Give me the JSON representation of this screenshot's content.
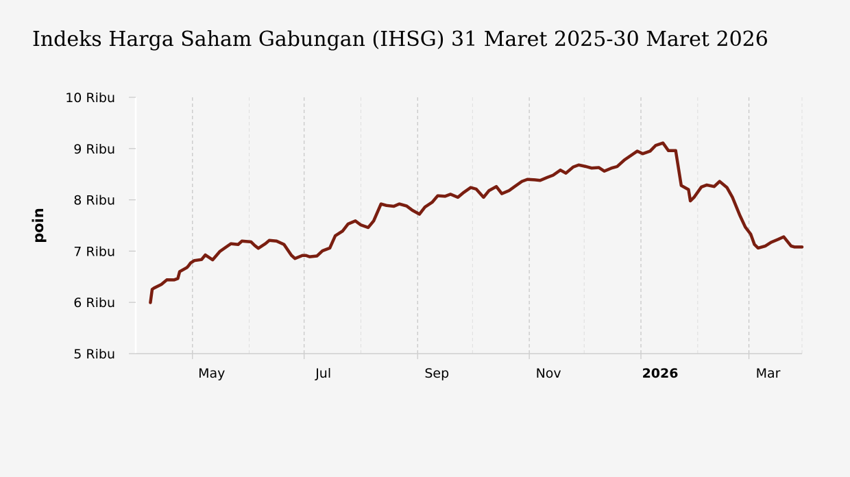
{
  "chart_data": {
    "type": "line",
    "title": "Indeks Harga Saham Gabungan (IHSG) 31 Maret 2025-30 Maret 2026",
    "xlabel": "",
    "ylabel": "poin",
    "ylim": [
      5000,
      10000
    ],
    "y_ticks": [
      {
        "value": 5000,
        "label": "5 Ribu"
      },
      {
        "value": 6000,
        "label": "6 Ribu"
      },
      {
        "value": 7000,
        "label": "7 Ribu"
      },
      {
        "value": 8000,
        "label": "8 Ribu"
      },
      {
        "value": 9000,
        "label": "9 Ribu"
      },
      {
        "value": 10000,
        "label": "10 Ribu"
      }
    ],
    "xlim": [
      "2025-03-31",
      "2026-03-30"
    ],
    "x_ticks": [
      {
        "date": "2025-05-01",
        "label": "May",
        "bold": false
      },
      {
        "date": "2025-07-01",
        "label": "Jul",
        "bold": false
      },
      {
        "date": "2025-09-01",
        "label": "Sep",
        "bold": false
      },
      {
        "date": "2025-11-01",
        "label": "Nov",
        "bold": false
      },
      {
        "date": "2026-01-01",
        "label": "2026",
        "bold": true
      },
      {
        "date": "2026-03-01",
        "label": "Mar",
        "bold": false
      }
    ],
    "minor_gridlines": [
      "2025-06-01",
      "2025-08-01",
      "2025-10-01",
      "2025-12-01",
      "2026-02-01"
    ],
    "grid": true,
    "line_color": "#7a1e10",
    "series": [
      {
        "name": "",
        "x": [
          "2025-04-08",
          "2025-04-09",
          "2025-04-10",
          "2025-04-14",
          "2025-04-17",
          "2025-04-21",
          "2025-04-23",
          "2025-04-24",
          "2025-04-28",
          "2025-04-29",
          "2025-04-30",
          "2025-05-02",
          "2025-05-06",
          "2025-05-08",
          "2025-05-12",
          "2025-05-14",
          "2025-05-16",
          "2025-05-20",
          "2025-05-22",
          "2025-05-26",
          "2025-05-28",
          "2025-06-02",
          "2025-06-04",
          "2025-06-06",
          "2025-06-10",
          "2025-06-12",
          "2025-06-16",
          "2025-06-20",
          "2025-06-24",
          "2025-06-26",
          "2025-06-30",
          "2025-07-02",
          "2025-07-04",
          "2025-07-08",
          "2025-07-11",
          "2025-07-15",
          "2025-07-18",
          "2025-07-22",
          "2025-07-25",
          "2025-07-29",
          "2025-08-01",
          "2025-08-05",
          "2025-08-08",
          "2025-08-12",
          "2025-08-15",
          "2025-08-19",
          "2025-08-22",
          "2025-08-26",
          "2025-08-29",
          "2025-09-02",
          "2025-09-05",
          "2025-09-09",
          "2025-09-12",
          "2025-09-16",
          "2025-09-19",
          "2025-09-23",
          "2025-09-26",
          "2025-09-30",
          "2025-10-03",
          "2025-10-07",
          "2025-10-10",
          "2025-10-14",
          "2025-10-17",
          "2025-10-21",
          "2025-10-24",
          "2025-10-28",
          "2025-10-31",
          "2025-11-04",
          "2025-11-07",
          "2025-11-11",
          "2025-11-14",
          "2025-11-18",
          "2025-11-21",
          "2025-11-25",
          "2025-11-28",
          "2025-12-02",
          "2025-12-05",
          "2025-12-09",
          "2025-12-12",
          "2025-12-16",
          "2025-12-19",
          "2025-12-23",
          "2025-12-30",
          "2026-01-02",
          "2026-01-06",
          "2026-01-09",
          "2026-01-13",
          "2026-01-16",
          "2026-01-20",
          "2026-01-23",
          "2026-01-27",
          "2026-01-28",
          "2026-01-30",
          "2026-02-03",
          "2026-02-06",
          "2026-02-10",
          "2026-02-13",
          "2026-02-17",
          "2026-02-20",
          "2026-02-24",
          "2026-02-27",
          "2026-03-02",
          "2026-03-04",
          "2026-03-06",
          "2026-03-10",
          "2026-03-13",
          "2026-03-17",
          "2026-03-20",
          "2026-03-24",
          "2026-03-26",
          "2026-03-30"
        ],
        "values": [
          5996,
          6254,
          6280,
          6350,
          6440,
          6438,
          6465,
          6600,
          6680,
          6720,
          6770,
          6815,
          6835,
          6925,
          6830,
          6912,
          6995,
          7095,
          7145,
          7130,
          7195,
          7180,
          7110,
          7055,
          7150,
          7210,
          7195,
          7130,
          6920,
          6855,
          6915,
          6915,
          6890,
          6905,
          7005,
          7060,
          7300,
          7390,
          7530,
          7590,
          7510,
          7460,
          7590,
          7920,
          7890,
          7875,
          7920,
          7880,
          7800,
          7720,
          7860,
          7955,
          8080,
          8070,
          8110,
          8050,
          8140,
          8240,
          8210,
          8050,
          8180,
          8260,
          8120,
          8180,
          8260,
          8360,
          8400,
          8390,
          8380,
          8440,
          8480,
          8580,
          8520,
          8640,
          8680,
          8650,
          8620,
          8630,
          8560,
          8620,
          8650,
          8780,
          8950,
          8900,
          8950,
          9060,
          9110,
          8960,
          8960,
          8280,
          8200,
          7980,
          8050,
          8250,
          8290,
          8260,
          8360,
          8240,
          8050,
          7700,
          7470,
          7330,
          7130,
          7060,
          7100,
          7170,
          7230,
          7280,
          7100,
          7080,
          7080
        ]
      }
    ]
  }
}
